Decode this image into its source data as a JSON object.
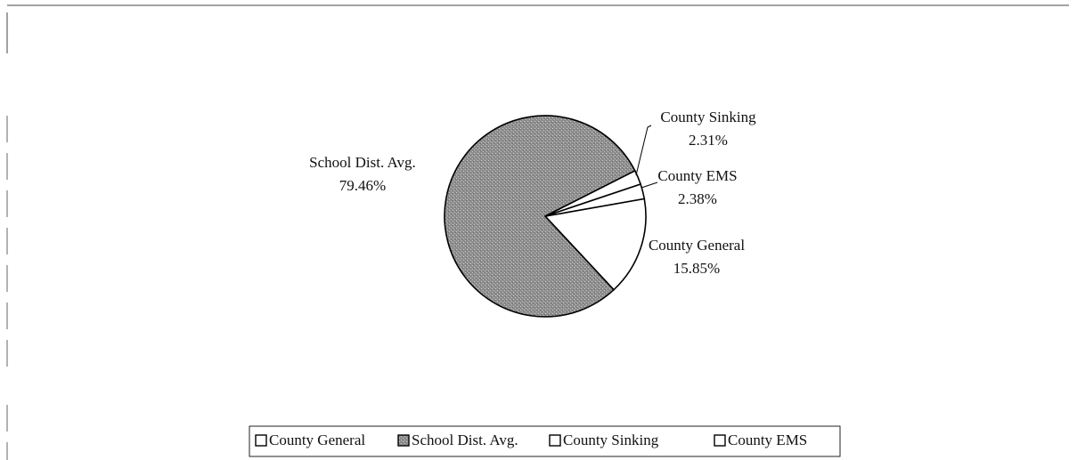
{
  "chart_data": {
    "type": "pie",
    "categories": [
      "County General",
      "School Dist. Avg.",
      "County Sinking",
      "County EMS"
    ],
    "values": [
      15.85,
      79.46,
      2.31,
      2.38
    ],
    "value_labels": [
      "15.85%",
      "79.46%",
      "2.31%",
      "2.38%"
    ],
    "colors": [
      "#ffffff",
      "#9a9a9a",
      "#ffffff",
      "#ffffff"
    ],
    "legend": "bottom"
  }
}
